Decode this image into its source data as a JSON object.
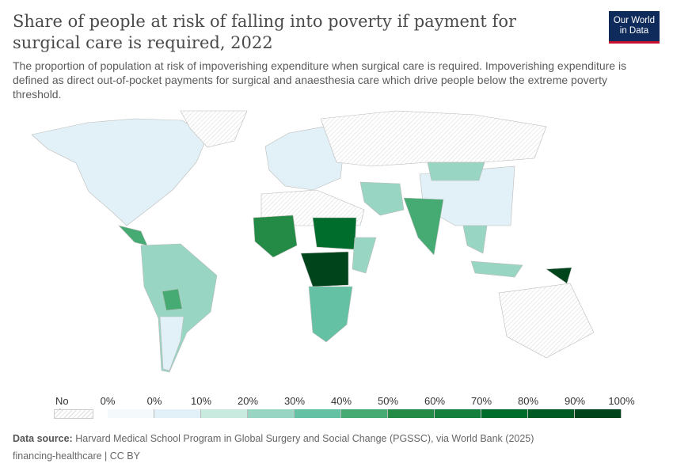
{
  "title": "Share of people at risk of falling into poverty if payment for surgical care is required, 2022",
  "logo": {
    "line1": "Our World",
    "line2": "in Data",
    "bg": "#0f2b5b",
    "accent": "#c8102e"
  },
  "subtitle": "The proportion of population at risk of impoverishing expenditure when surgical care is required. Impoverishing expenditure is defined as direct out-of-pocket payments for surgical and anaesthesia care which drive people below the extreme poverty threshold.",
  "legend": {
    "no_data": "No data",
    "ticks": [
      "0%",
      "0%",
      "10%",
      "20%",
      "30%",
      "40%",
      "50%",
      "60%",
      "70%",
      "80%",
      "90%",
      "100%"
    ],
    "colors": [
      "#f4fafb",
      "#e2f1f7",
      "#c8eadf",
      "#99d5c3",
      "#64c1a4",
      "#45ab72",
      "#238b45",
      "#15803d",
      "#006d2c",
      "#005a24",
      "#00441b"
    ]
  },
  "source": {
    "label": "Data source:",
    "text": "Harvard Medical School Program in Global Surgery and Social Change (PGSSC), via World Bank (2025)"
  },
  "footer": "financing-healthcare | CC BY"
}
